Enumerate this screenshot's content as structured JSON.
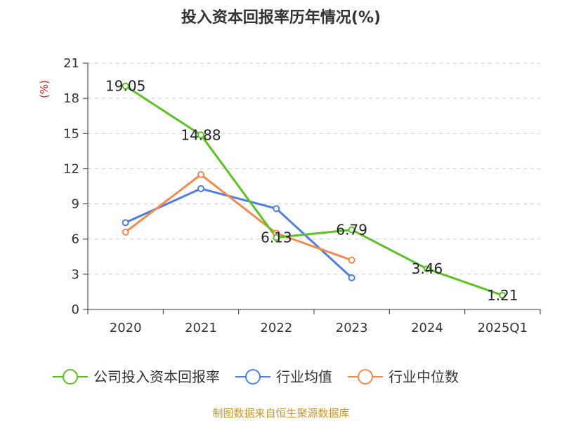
{
  "chart_data": {
    "type": "line",
    "title": "投入资本回报率历年情况(%)",
    "ylabel": "(%)",
    "xlabel": "",
    "categories": [
      "2020",
      "2021",
      "2022",
      "2023",
      "2024",
      "2025Q1"
    ],
    "ylim": [
      0,
      21
    ],
    "yticks": [
      0,
      3,
      6,
      9,
      12,
      15,
      18,
      21
    ],
    "grid": "horizontal-dashed",
    "legend_position": "bottom",
    "series": [
      {
        "name": "公司投入资本回报率",
        "color": "#5bc223",
        "values": [
          19.05,
          14.88,
          6.13,
          6.79,
          3.46,
          1.21
        ],
        "labels": [
          "19.05",
          "14.88",
          "6.13",
          "6.79",
          "3.46",
          "1.21"
        ]
      },
      {
        "name": "行业均值",
        "color": "#4f7ee0",
        "values": [
          7.4,
          10.3,
          8.6,
          2.7,
          null,
          null
        ]
      },
      {
        "name": "行业中位数",
        "color": "#f5894e",
        "values": [
          6.6,
          11.5,
          6.5,
          4.2,
          null,
          null
        ]
      }
    ],
    "source": "制图数据来自恒生聚源数据库"
  }
}
